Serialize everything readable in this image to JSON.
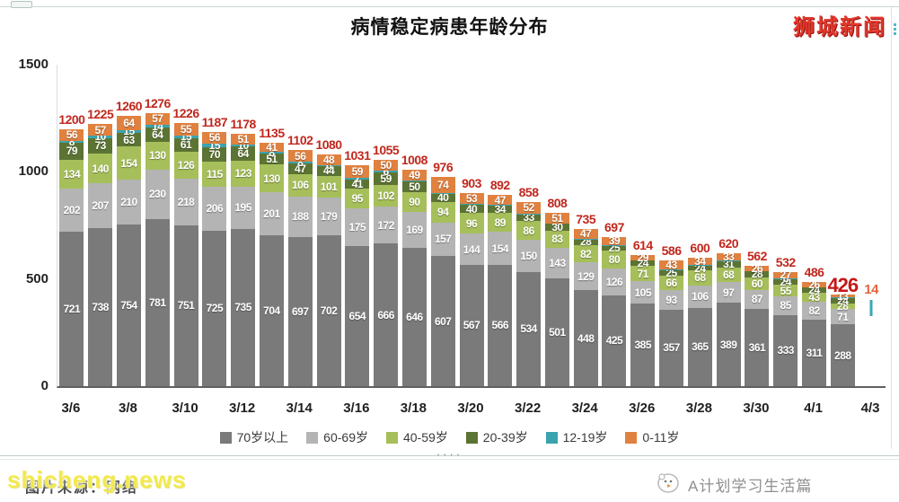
{
  "header": {
    "title": "病情稳定病患年龄分布",
    "logo": "狮城新闻"
  },
  "chart_data": {
    "type": "bar",
    "stacked": true,
    "title": "病情稳定病患年龄分布",
    "ylim": [
      0,
      1500
    ],
    "yticks": [
      1500,
      1000,
      500,
      0
    ],
    "grid": false,
    "legend_position": "bottom",
    "categories": [
      "3/6",
      "3/7",
      "3/8",
      "3/9",
      "3/10",
      "3/11",
      "3/12",
      "3/13",
      "3/14",
      "3/15",
      "3/16",
      "3/17",
      "3/18",
      "3/19",
      "3/20",
      "3/21",
      "3/22",
      "3/23",
      "3/24",
      "3/25",
      "3/26",
      "3/27",
      "3/28",
      "3/29",
      "3/30",
      "3/31",
      "4/1",
      "4/2",
      "4/3"
    ],
    "xticks_shown": [
      "3/6",
      "3/8",
      "3/10",
      "3/12",
      "3/14",
      "3/16",
      "3/18",
      "3/20",
      "3/22",
      "3/24",
      "3/26",
      "3/28",
      "3/30",
      "4/1",
      "4/3"
    ],
    "series": [
      {
        "key": "age70plus",
        "name": "70岁以上",
        "color": "#7a7a7a",
        "values": [
          721,
          738,
          754,
          781,
          751,
          725,
          735,
          704,
          697,
          702,
          654,
          666,
          646,
          607,
          567,
          566,
          534,
          501,
          448,
          425,
          385,
          357,
          365,
          389,
          361,
          333,
          311,
          288,
          0
        ]
      },
      {
        "key": "age60_69",
        "name": "60-69岁",
        "color": "#b4b4b4",
        "values": [
          202,
          207,
          210,
          230,
          218,
          206,
          195,
          201,
          188,
          179,
          175,
          172,
          169,
          157,
          144,
          154,
          150,
          143,
          129,
          126,
          105,
          93,
          106,
          97,
          87,
          85,
          82,
          71,
          0
        ]
      },
      {
        "key": "age40_59",
        "name": "40-59岁",
        "color": "#a6bf5a",
        "values": [
          134,
          140,
          154,
          130,
          126,
          115,
          123,
          130,
          106,
          101,
          95,
          102,
          90,
          94,
          96,
          89,
          86,
          83,
          82,
          80,
          71,
          66,
          68,
          68,
          60,
          55,
          43,
          28,
          0
        ]
      },
      {
        "key": "age20_39",
        "name": "20-39岁",
        "color": "#5c7433",
        "values": [
          79,
          73,
          63,
          64,
          61,
          70,
          64,
          51,
          47,
          44,
          41,
          59,
          50,
          40,
          40,
          34,
          33,
          30,
          28,
          25,
          24,
          25,
          24,
          31,
          28,
          24,
          24,
          24,
          0
        ]
      },
      {
        "key": "age12_19",
        "name": "12-19岁",
        "color": "#3ba3b0",
        "values": [
          8,
          10,
          15,
          14,
          15,
          15,
          10,
          8,
          8,
          6,
          7,
          6,
          4,
          4,
          3,
          2,
          3,
          0,
          1,
          2,
          0,
          2,
          3,
          2,
          0,
          8,
          0,
          2,
          14
        ]
      },
      {
        "key": "age0_11",
        "name": "0-11岁",
        "color": "#e0813f",
        "values": [
          56,
          57,
          64,
          57,
          55,
          56,
          51,
          41,
          56,
          48,
          59,
          50,
          49,
          74,
          53,
          47,
          52,
          51,
          47,
          39,
          29,
          43,
          34,
          33,
          26,
          27,
          26,
          13,
          0
        ]
      }
    ],
    "totals": [
      1200,
      1225,
      1260,
      1276,
      1226,
      1187,
      1178,
      1135,
      1102,
      1080,
      1031,
      1055,
      1008,
      976,
      903,
      892,
      858,
      808,
      735,
      697,
      614,
      586,
      600,
      620,
      562,
      532,
      486,
      426,
      14
    ],
    "total_label_styles": {
      "4/2": "large-red",
      "4/3": "small-orange"
    },
    "last_bar_render": "floating-tick"
  },
  "footer": {
    "divider_dots": "····",
    "watermark": "shicheng.news",
    "source_caption": "图片来源：网络",
    "credit": "A计划学习生活篇"
  }
}
